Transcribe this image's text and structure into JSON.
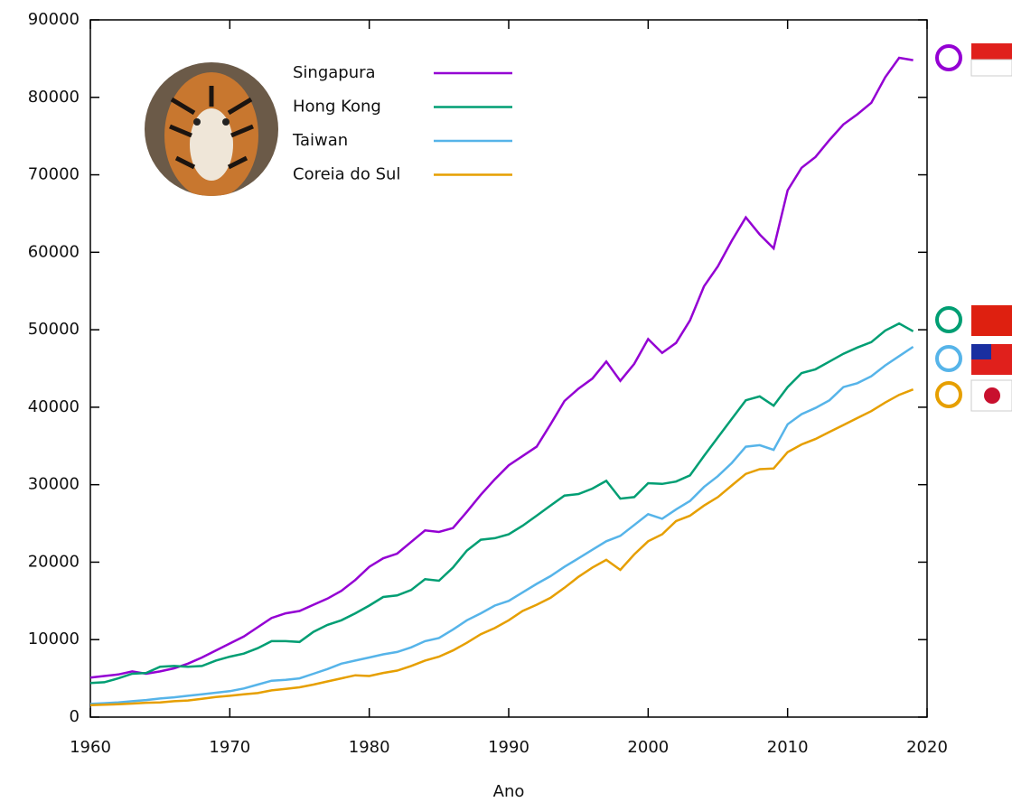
{
  "chart_data": {
    "type": "line",
    "x_label": "Ano",
    "x": [
      1960,
      1961,
      1962,
      1963,
      1964,
      1965,
      1966,
      1967,
      1968,
      1969,
      1970,
      1971,
      1972,
      1973,
      1974,
      1975,
      1976,
      1977,
      1978,
      1979,
      1980,
      1981,
      1982,
      1983,
      1984,
      1985,
      1986,
      1987,
      1988,
      1989,
      1990,
      1991,
      1992,
      1993,
      1994,
      1995,
      1996,
      1997,
      1998,
      1999,
      2000,
      2001,
      2002,
      2003,
      2004,
      2005,
      2006,
      2007,
      2008,
      2009,
      2010,
      2011,
      2012,
      2013,
      2014,
      2015,
      2016,
      2017,
      2018,
      2019
    ],
    "xlim": [
      1960,
      2020
    ],
    "xticks": [
      1960,
      1970,
      1980,
      1990,
      2000,
      2010,
      2020
    ],
    "ylim": [
      0,
      90000
    ],
    "yticks": [
      0,
      10000,
      20000,
      30000,
      40000,
      50000,
      60000,
      70000,
      80000,
      90000
    ],
    "series": [
      {
        "name": "Singapura",
        "color": "#9400d3",
        "values": [
          5100,
          5300,
          5500,
          5900,
          5600,
          5900,
          6300,
          6900,
          7700,
          8600,
          9500,
          10400,
          11600,
          12800,
          13400,
          13700,
          14500,
          15300,
          16300,
          17700,
          19400,
          20500,
          21100,
          22600,
          24100,
          23900,
          24400,
          26500,
          28700,
          30700,
          32500,
          33700,
          34900,
          37800,
          40800,
          42400,
          43700,
          45900,
          43400,
          45600,
          48800,
          47000,
          48300,
          51200,
          55600,
          58200,
          61500,
          64500,
          62300,
          60500,
          68000,
          70900,
          72300,
          74500,
          76500,
          77800,
          79300,
          82600,
          85100,
          84800
        ]
      },
      {
        "name": "Hong Kong",
        "color": "#009e73",
        "values": [
          4400,
          4500,
          5000,
          5600,
          5700,
          6500,
          6600,
          6500,
          6600,
          7300,
          7800,
          8200,
          8900,
          9800,
          9800,
          9700,
          11000,
          11900,
          12500,
          13400,
          14400,
          15500,
          15700,
          16400,
          17800,
          17600,
          19300,
          21500,
          22900,
          23100,
          23600,
          24700,
          26000,
          27300,
          28600,
          28800,
          29500,
          30500,
          28200,
          28400,
          30200,
          30100,
          30400,
          31200,
          33700,
          36100,
          38500,
          40900,
          41400,
          40200,
          42600,
          44400,
          44900,
          45900,
          46900,
          47700,
          48400,
          49900,
          50800,
          49800
        ]
      },
      {
        "name": "Taiwan",
        "color": "#56b4e9",
        "values": [
          1700,
          1800,
          1900,
          2050,
          2200,
          2400,
          2550,
          2750,
          2950,
          3150,
          3350,
          3700,
          4200,
          4700,
          4800,
          5000,
          5600,
          6200,
          6900,
          7300,
          7700,
          8100,
          8400,
          9000,
          9800,
          10200,
          11300,
          12500,
          13400,
          14400,
          15000,
          16100,
          17200,
          18200,
          19400,
          20500,
          21600,
          22700,
          23400,
          24800,
          26200,
          25600,
          26800,
          27900,
          29700,
          31100,
          32800,
          34900,
          35100,
          34500,
          37800,
          39100,
          39900,
          40900,
          42600,
          43100,
          44000,
          45400,
          46600,
          47800
        ]
      },
      {
        "name": "Coreia do Sul",
        "color": "#e69f00",
        "values": [
          1550,
          1600,
          1650,
          1750,
          1850,
          1900,
          2050,
          2150,
          2350,
          2600,
          2750,
          2950,
          3100,
          3450,
          3650,
          3850,
          4200,
          4600,
          5000,
          5400,
          5300,
          5700,
          6000,
          6600,
          7300,
          7800,
          8600,
          9600,
          10700,
          11500,
          12500,
          13700,
          14500,
          15400,
          16700,
          18100,
          19300,
          20300,
          19000,
          21000,
          22700,
          23600,
          25300,
          26000,
          27300,
          28400,
          29900,
          31400,
          32000,
          32100,
          34200,
          35200,
          35900,
          36800,
          37700,
          38600,
          39500,
          40600,
          41600,
          42300
        ]
      }
    ]
  }
}
